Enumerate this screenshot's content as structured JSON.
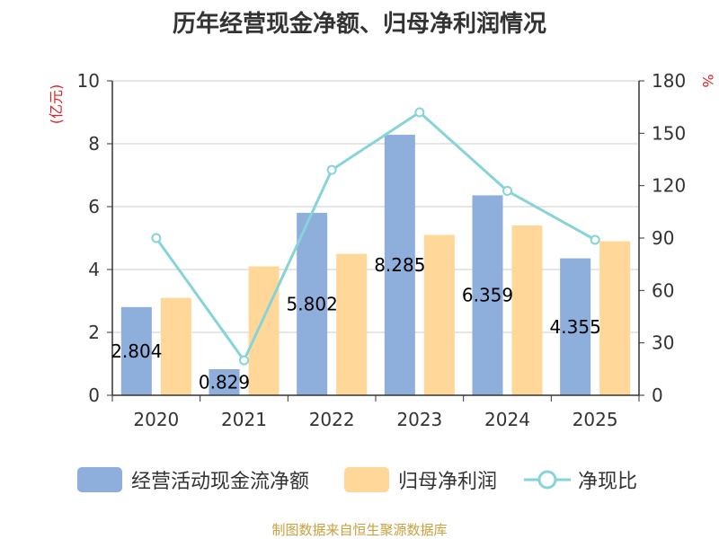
{
  "title": "历年经营现金净额、归母净利润情况",
  "chart_data": {
    "type": "bar",
    "categories": [
      "2020",
      "2021",
      "2022",
      "2023",
      "2024",
      "2025"
    ],
    "series": [
      {
        "name": "经营活动现金流净额",
        "kind": "bar",
        "axis": "left",
        "color": "#8eaedb",
        "values": [
          2.804,
          0.829,
          5.802,
          8.285,
          6.359,
          4.355
        ],
        "labels": [
          "2.804",
          "0.829",
          "5.802",
          "8.285",
          "6.359",
          "4.355"
        ]
      },
      {
        "name": "归母净利润",
        "kind": "bar",
        "axis": "left",
        "color": "#ffd899",
        "values": [
          3.1,
          4.1,
          4.5,
          5.1,
          5.4,
          4.9
        ]
      },
      {
        "name": "净现比",
        "kind": "line",
        "axis": "right",
        "color": "#86d3d8",
        "values": [
          90,
          20,
          129,
          162,
          117,
          89
        ]
      }
    ],
    "y_left": {
      "label": "(亿元)",
      "min": 0,
      "max": 10,
      "ticks": [
        "0",
        "2",
        "4",
        "6",
        "8",
        "10"
      ]
    },
    "y_right": {
      "label": "%",
      "min": 0,
      "max": 180,
      "ticks": [
        "0",
        "30",
        "60",
        "90",
        "120",
        "150",
        "180"
      ]
    },
    "grid": true,
    "legend_position": "bottom"
  },
  "legend": [
    {
      "label": "经营活动现金流净额",
      "color": "#8eaedb",
      "shape": "rect"
    },
    {
      "label": "归母净利润",
      "color": "#ffd899",
      "shape": "rect"
    },
    {
      "label": "净现比",
      "color": "#86d3d8",
      "shape": "line-circle"
    }
  ],
  "source": "制图数据来自恒生聚源数据库",
  "colors": {
    "axis": "#333333",
    "grid": "#cccccc",
    "unit_label": "#e02020"
  }
}
